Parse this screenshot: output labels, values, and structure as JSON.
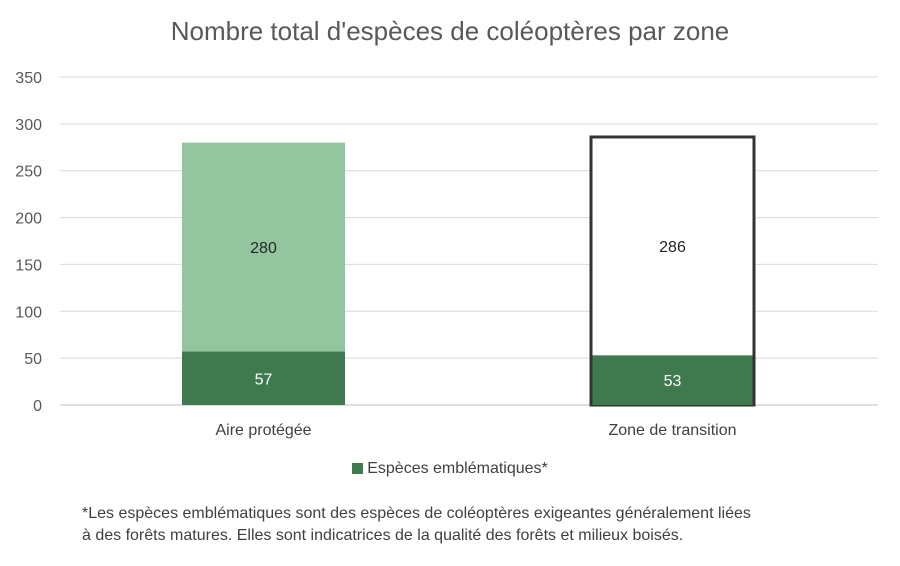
{
  "chart_data": {
    "type": "bar",
    "title": "Nombre total d'espèces de coléoptères par zone",
    "categories": [
      "Aire protégée",
      "Zone de transition"
    ],
    "series": [
      {
        "name": "",
        "values": [
          280,
          286
        ],
        "value_labels": [
          "280",
          "286"
        ],
        "styles": [
          {
            "fill": "#93c69e",
            "stroke": "none"
          },
          {
            "fill": "#ffffff",
            "stroke": "#333333"
          }
        ]
      },
      {
        "name": "Espèces emblématiques*",
        "values": [
          57,
          53
        ],
        "value_labels": [
          "57",
          "53"
        ],
        "color": "#3f7a4f"
      }
    ],
    "ylim": [
      0,
      350
    ],
    "yticks": [
      "0",
      "50",
      "100",
      "150",
      "200",
      "250",
      "300",
      "350"
    ],
    "xlabel": "",
    "ylabel": "",
    "grid": true,
    "legend": "bottom"
  },
  "footnote": {
    "line1": "*Les espèces emblématiques sont des espèces de coléoptères exigeantes généralement liées",
    "line2": "à des forêts matures. Elles sont indicatrices de la qualité des forêts et milieux boisés."
  }
}
